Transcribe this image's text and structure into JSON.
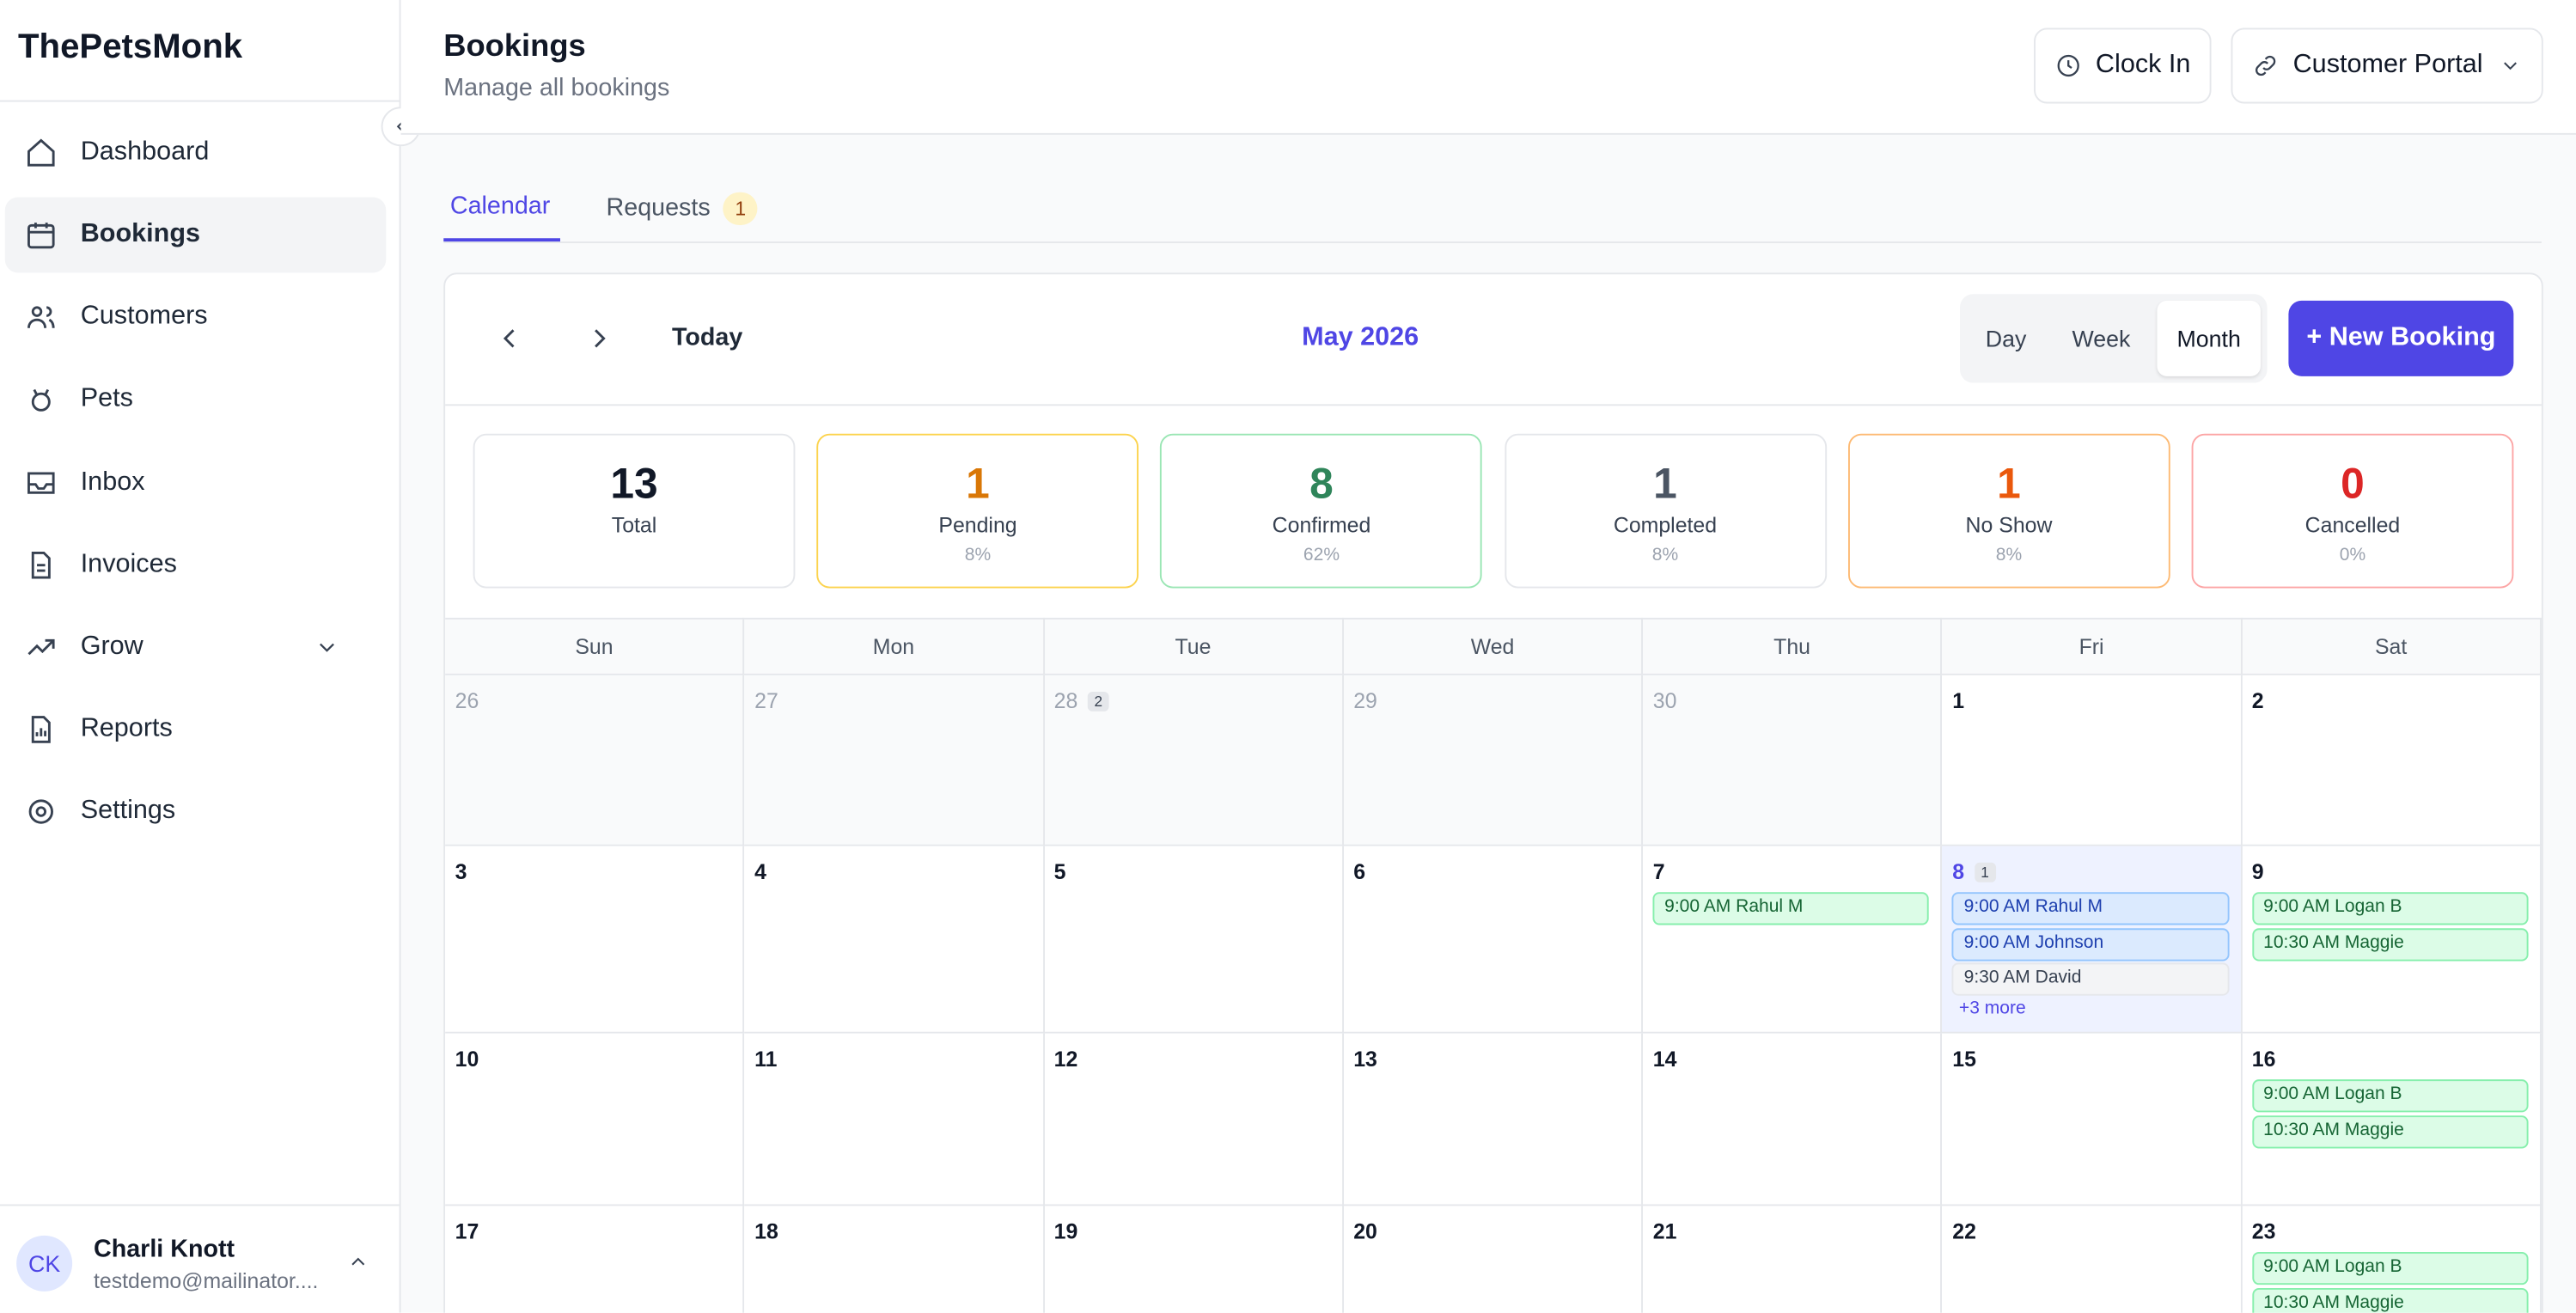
{
  "sidebar": {
    "brand": "ThePetsMonk",
    "nav": [
      {
        "label": "Dashboard"
      },
      {
        "label": "Bookings",
        "active": true
      },
      {
        "label": "Customers"
      },
      {
        "label": "Pets"
      },
      {
        "label": "Inbox"
      },
      {
        "label": "Invoices"
      },
      {
        "label": "Grow",
        "expandable": true
      },
      {
        "label": "Reports"
      },
      {
        "label": "Settings"
      }
    ],
    "user": {
      "initials": "CK",
      "name": "Charli Knott",
      "email": "testdemo@mailinator...."
    }
  },
  "header": {
    "title": "Bookings",
    "subtitle": "Manage all bookings",
    "clock_in": "Clock In",
    "portal": "Customer Portal"
  },
  "tabs": [
    {
      "label": "Calendar",
      "active": true
    },
    {
      "label": "Requests",
      "badge": "1"
    }
  ],
  "toolbar": {
    "today": "Today",
    "month": "May 2026",
    "views": [
      {
        "label": "Day"
      },
      {
        "label": "Week"
      },
      {
        "label": "Month",
        "active": true
      }
    ],
    "new_booking": "+ New Booking"
  },
  "stats": [
    {
      "value": "13",
      "label": "Total",
      "color": "#111827",
      "border": "#e5e7eb"
    },
    {
      "value": "1",
      "label": "Pending",
      "percent": "8%",
      "color": "#d97706",
      "border": "#fcd34d"
    },
    {
      "value": "8",
      "label": "Confirmed",
      "percent": "62%",
      "color": "#2f855a",
      "border": "#9ae6b4"
    },
    {
      "value": "1",
      "label": "Completed",
      "percent": "8%",
      "color": "#4b5563",
      "border": "#e5e7eb"
    },
    {
      "value": "1",
      "label": "No Show",
      "percent": "8%",
      "color": "#ea580c",
      "border": "#fdba74"
    },
    {
      "value": "0",
      "label": "Cancelled",
      "percent": "0%",
      "color": "#dc2626",
      "border": "#fca5a5"
    }
  ],
  "calendar": {
    "weekdays": [
      "Sun",
      "Mon",
      "Tue",
      "Wed",
      "Thu",
      "Fri",
      "Sat"
    ],
    "weeks": [
      [
        {
          "day": "26",
          "muted": true
        },
        {
          "day": "27",
          "muted": true
        },
        {
          "day": "28",
          "muted": true,
          "badge": "2"
        },
        {
          "day": "29",
          "muted": true
        },
        {
          "day": "30",
          "muted": true
        },
        {
          "day": "1"
        },
        {
          "day": "2"
        }
      ],
      [
        {
          "day": "3"
        },
        {
          "day": "4"
        },
        {
          "day": "5"
        },
        {
          "day": "6"
        },
        {
          "day": "7",
          "events": [
            {
              "text": "9:00 AM Rahul M",
              "color": "green"
            }
          ]
        },
        {
          "day": "8",
          "today": true,
          "badge": "1",
          "events": [
            {
              "text": "9:00 AM Rahul M",
              "color": "blue"
            },
            {
              "text": "9:00 AM Johnson",
              "color": "blue"
            },
            {
              "text": "9:30 AM David",
              "color": "gray"
            }
          ],
          "more": "+3 more"
        },
        {
          "day": "9",
          "events": [
            {
              "text": "9:00 AM Logan B",
              "color": "green"
            },
            {
              "text": "10:30 AM Maggie",
              "color": "green"
            }
          ]
        }
      ],
      [
        {
          "day": "10"
        },
        {
          "day": "11"
        },
        {
          "day": "12"
        },
        {
          "day": "13"
        },
        {
          "day": "14"
        },
        {
          "day": "15"
        },
        {
          "day": "16",
          "events": [
            {
              "text": "9:00 AM Logan B",
              "color": "green"
            },
            {
              "text": "10:30 AM Maggie",
              "color": "green"
            }
          ]
        }
      ],
      [
        {
          "day": "17"
        },
        {
          "day": "18"
        },
        {
          "day": "19"
        },
        {
          "day": "20"
        },
        {
          "day": "21"
        },
        {
          "day": "22"
        },
        {
          "day": "23",
          "events": [
            {
              "text": "9:00 AM Logan B",
              "color": "green"
            },
            {
              "text": "10:30 AM Maggie",
              "color": "green"
            }
          ]
        }
      ]
    ]
  }
}
